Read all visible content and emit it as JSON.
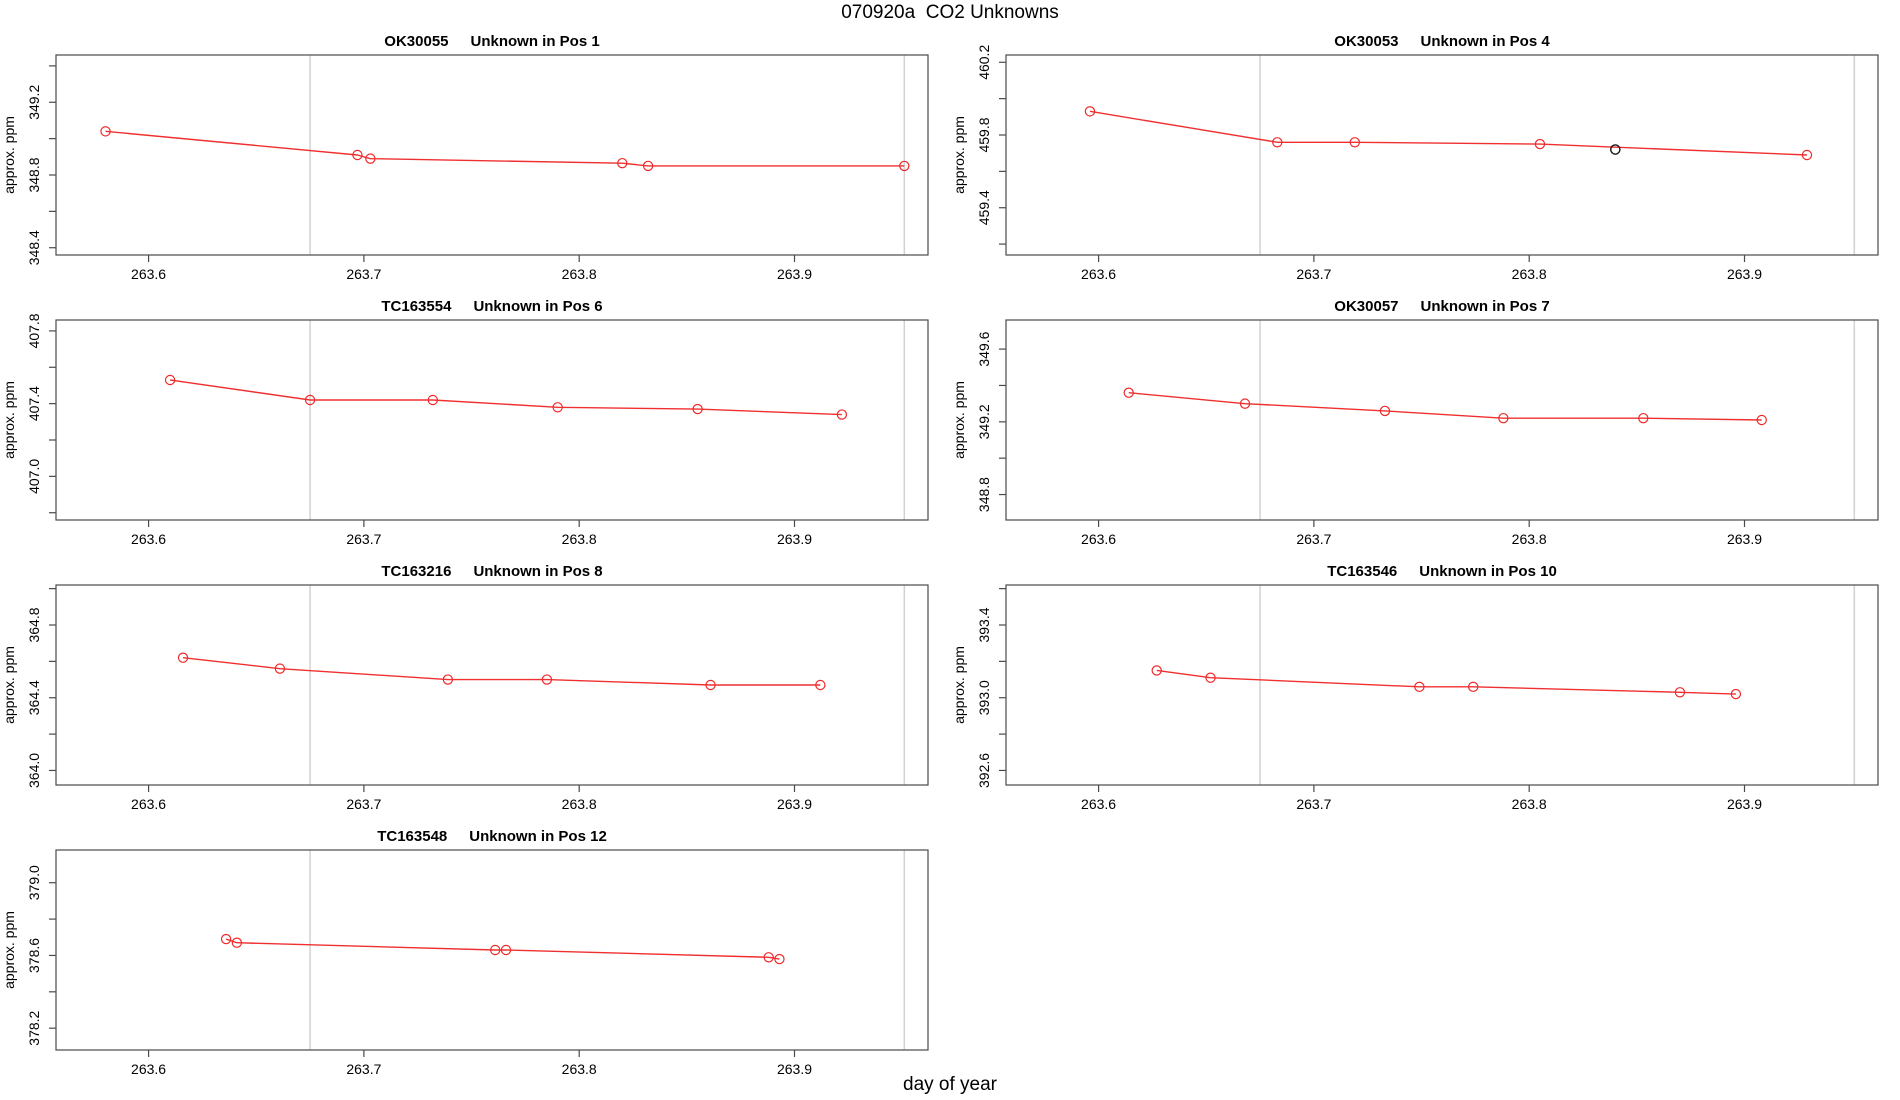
{
  "page_title": "070920a  CO2 Unknowns",
  "xlabel": "day of year",
  "colors": {
    "series": "#f03030",
    "marker": "#ef2929",
    "flagged_point": "#1a1a1a",
    "guide_line": "#d2d2d2",
    "axis": "#4a4a4a",
    "text": "#000000",
    "background": "#ffffff"
  },
  "chart_data": [
    {
      "type": "line",
      "id": "OK30055",
      "title": {
        "label": "OK30055",
        "sublabel": "Unknown in Pos 1"
      },
      "ylabel": "approx. ppm",
      "xlim": [
        263.557,
        263.962
      ],
      "ylim": [
        348.36,
        349.46
      ],
      "ytick_step": 0.2,
      "xticks": [
        {
          "v": 263.6,
          "label": "263.6"
        },
        {
          "v": 263.7,
          "label": "263.7"
        },
        {
          "v": 263.8,
          "label": "263.8"
        },
        {
          "v": 263.9,
          "label": "263.9"
        }
      ],
      "yticks": [
        {
          "v": 348.4,
          "label": "348.4"
        },
        {
          "v": 348.8,
          "label": "348.8"
        },
        {
          "v": 349.2,
          "label": "349.2"
        }
      ],
      "vlines": [
        263.675,
        263.951
      ],
      "x": [
        263.58,
        263.697,
        263.703,
        263.82,
        263.832,
        263.951
      ],
      "y": [
        349.04,
        348.91,
        348.89,
        348.865,
        348.85,
        348.85
      ],
      "flagged": []
    },
    {
      "type": "line",
      "id": "OK30053",
      "title": {
        "label": "OK30053",
        "sublabel": "Unknown in Pos 4"
      },
      "ylabel": "approx. ppm",
      "xlim": [
        263.557,
        263.962
      ],
      "ylim": [
        459.14,
        460.24
      ],
      "ytick_step": 0.2,
      "xticks": [
        {
          "v": 263.6,
          "label": "263.6"
        },
        {
          "v": 263.7,
          "label": "263.7"
        },
        {
          "v": 263.8,
          "label": "263.8"
        },
        {
          "v": 263.9,
          "label": "263.9"
        }
      ],
      "yticks": [
        {
          "v": 459.4,
          "label": "459.4"
        },
        {
          "v": 459.8,
          "label": "459.8"
        },
        {
          "v": 460.2,
          "label": "460.2"
        }
      ],
      "vlines": [
        263.675,
        263.951
      ],
      "x": [
        263.596,
        263.683,
        263.719,
        263.805,
        263.929
      ],
      "y": [
        459.93,
        459.76,
        459.76,
        459.75,
        459.69
      ],
      "flagged": [
        {
          "x": 263.84,
          "y": 459.72
        }
      ]
    },
    {
      "type": "line",
      "id": "TC163554",
      "title": {
        "label": "TC163554",
        "sublabel": "Unknown in Pos 6"
      },
      "ylabel": "approx. ppm",
      "xlim": [
        263.557,
        263.962
      ],
      "ylim": [
        406.76,
        407.86
      ],
      "ytick_step": 0.2,
      "xticks": [
        {
          "v": 263.6,
          "label": "263.6"
        },
        {
          "v": 263.7,
          "label": "263.7"
        },
        {
          "v": 263.8,
          "label": "263.8"
        },
        {
          "v": 263.9,
          "label": "263.9"
        }
      ],
      "yticks": [
        {
          "v": 407.0,
          "label": "407.0"
        },
        {
          "v": 407.4,
          "label": "407.4"
        },
        {
          "v": 407.8,
          "label": "407.8"
        }
      ],
      "vlines": [
        263.675,
        263.951
      ],
      "x": [
        263.61,
        263.675,
        263.732,
        263.79,
        263.855,
        263.922
      ],
      "y": [
        407.53,
        407.42,
        407.42,
        407.38,
        407.37,
        407.34
      ],
      "flagged": []
    },
    {
      "type": "line",
      "id": "OK30057",
      "title": {
        "label": "OK30057",
        "sublabel": "Unknown in Pos 7"
      },
      "ylabel": "approx. ppm",
      "xlim": [
        263.557,
        263.962
      ],
      "ylim": [
        348.66,
        349.76
      ],
      "ytick_step": 0.2,
      "xticks": [
        {
          "v": 263.6,
          "label": "263.6"
        },
        {
          "v": 263.7,
          "label": "263.7"
        },
        {
          "v": 263.8,
          "label": "263.8"
        },
        {
          "v": 263.9,
          "label": "263.9"
        }
      ],
      "yticks": [
        {
          "v": 348.8,
          "label": "348.8"
        },
        {
          "v": 349.2,
          "label": "349.2"
        },
        {
          "v": 349.6,
          "label": "349.6"
        }
      ],
      "vlines": [
        263.675,
        263.951
      ],
      "x": [
        263.614,
        263.668,
        263.733,
        263.788,
        263.853,
        263.908
      ],
      "y": [
        349.36,
        349.3,
        349.26,
        349.22,
        349.22,
        349.21
      ],
      "flagged": []
    },
    {
      "type": "line",
      "id": "TC163216",
      "title": {
        "label": "TC163216",
        "sublabel": "Unknown in Pos 8"
      },
      "ylabel": "approx. ppm",
      "xlim": [
        263.557,
        263.962
      ],
      "ylim": [
        363.92,
        365.02
      ],
      "ytick_step": 0.2,
      "xticks": [
        {
          "v": 263.6,
          "label": "263.6"
        },
        {
          "v": 263.7,
          "label": "263.7"
        },
        {
          "v": 263.8,
          "label": "263.8"
        },
        {
          "v": 263.9,
          "label": "263.9"
        }
      ],
      "yticks": [
        {
          "v": 364.0,
          "label": "364.0"
        },
        {
          "v": 364.4,
          "label": "364.4"
        },
        {
          "v": 364.8,
          "label": "364.8"
        }
      ],
      "vlines": [
        263.675,
        263.951
      ],
      "x": [
        263.616,
        263.661,
        263.739,
        263.785,
        263.861,
        263.912
      ],
      "y": [
        364.62,
        364.56,
        364.5,
        364.5,
        364.47,
        364.47
      ],
      "flagged": []
    },
    {
      "type": "line",
      "id": "TC163546",
      "title": {
        "label": "TC163546",
        "sublabel": "Unknown in Pos 10"
      },
      "ylabel": "approx. ppm",
      "xlim": [
        263.557,
        263.962
      ],
      "ylim": [
        392.52,
        393.62
      ],
      "ytick_step": 0.2,
      "xticks": [
        {
          "v": 263.6,
          "label": "263.6"
        },
        {
          "v": 263.7,
          "label": "263.7"
        },
        {
          "v": 263.8,
          "label": "263.8"
        },
        {
          "v": 263.9,
          "label": "263.9"
        }
      ],
      "yticks": [
        {
          "v": 392.6,
          "label": "392.6"
        },
        {
          "v": 393.0,
          "label": "393.0"
        },
        {
          "v": 393.4,
          "label": "393.4"
        }
      ],
      "vlines": [
        263.675,
        263.951
      ],
      "x": [
        263.627,
        263.652,
        263.749,
        263.774,
        263.87,
        263.896
      ],
      "y": [
        393.15,
        393.11,
        393.06,
        393.06,
        393.03,
        393.02
      ],
      "flagged": []
    },
    {
      "type": "line",
      "id": "TC163548",
      "title": {
        "label": "TC163548",
        "sublabel": "Unknown in Pos 12"
      },
      "ylabel": "approx. ppm",
      "xlim": [
        263.557,
        263.962
      ],
      "ylim": [
        378.08,
        379.18
      ],
      "ytick_step": 0.2,
      "xticks": [
        {
          "v": 263.6,
          "label": "263.6"
        },
        {
          "v": 263.7,
          "label": "263.7"
        },
        {
          "v": 263.8,
          "label": "263.8"
        },
        {
          "v": 263.9,
          "label": "263.9"
        }
      ],
      "yticks": [
        {
          "v": 378.2,
          "label": "378.2"
        },
        {
          "v": 378.6,
          "label": "378.6"
        },
        {
          "v": 379.0,
          "label": "379.0"
        }
      ],
      "vlines": [
        263.675,
        263.951
      ],
      "x": [
        263.636,
        263.641,
        263.761,
        263.766,
        263.888,
        263.893
      ],
      "y": [
        378.69,
        378.67,
        378.63,
        378.63,
        378.59,
        378.58
      ],
      "flagged": []
    }
  ]
}
